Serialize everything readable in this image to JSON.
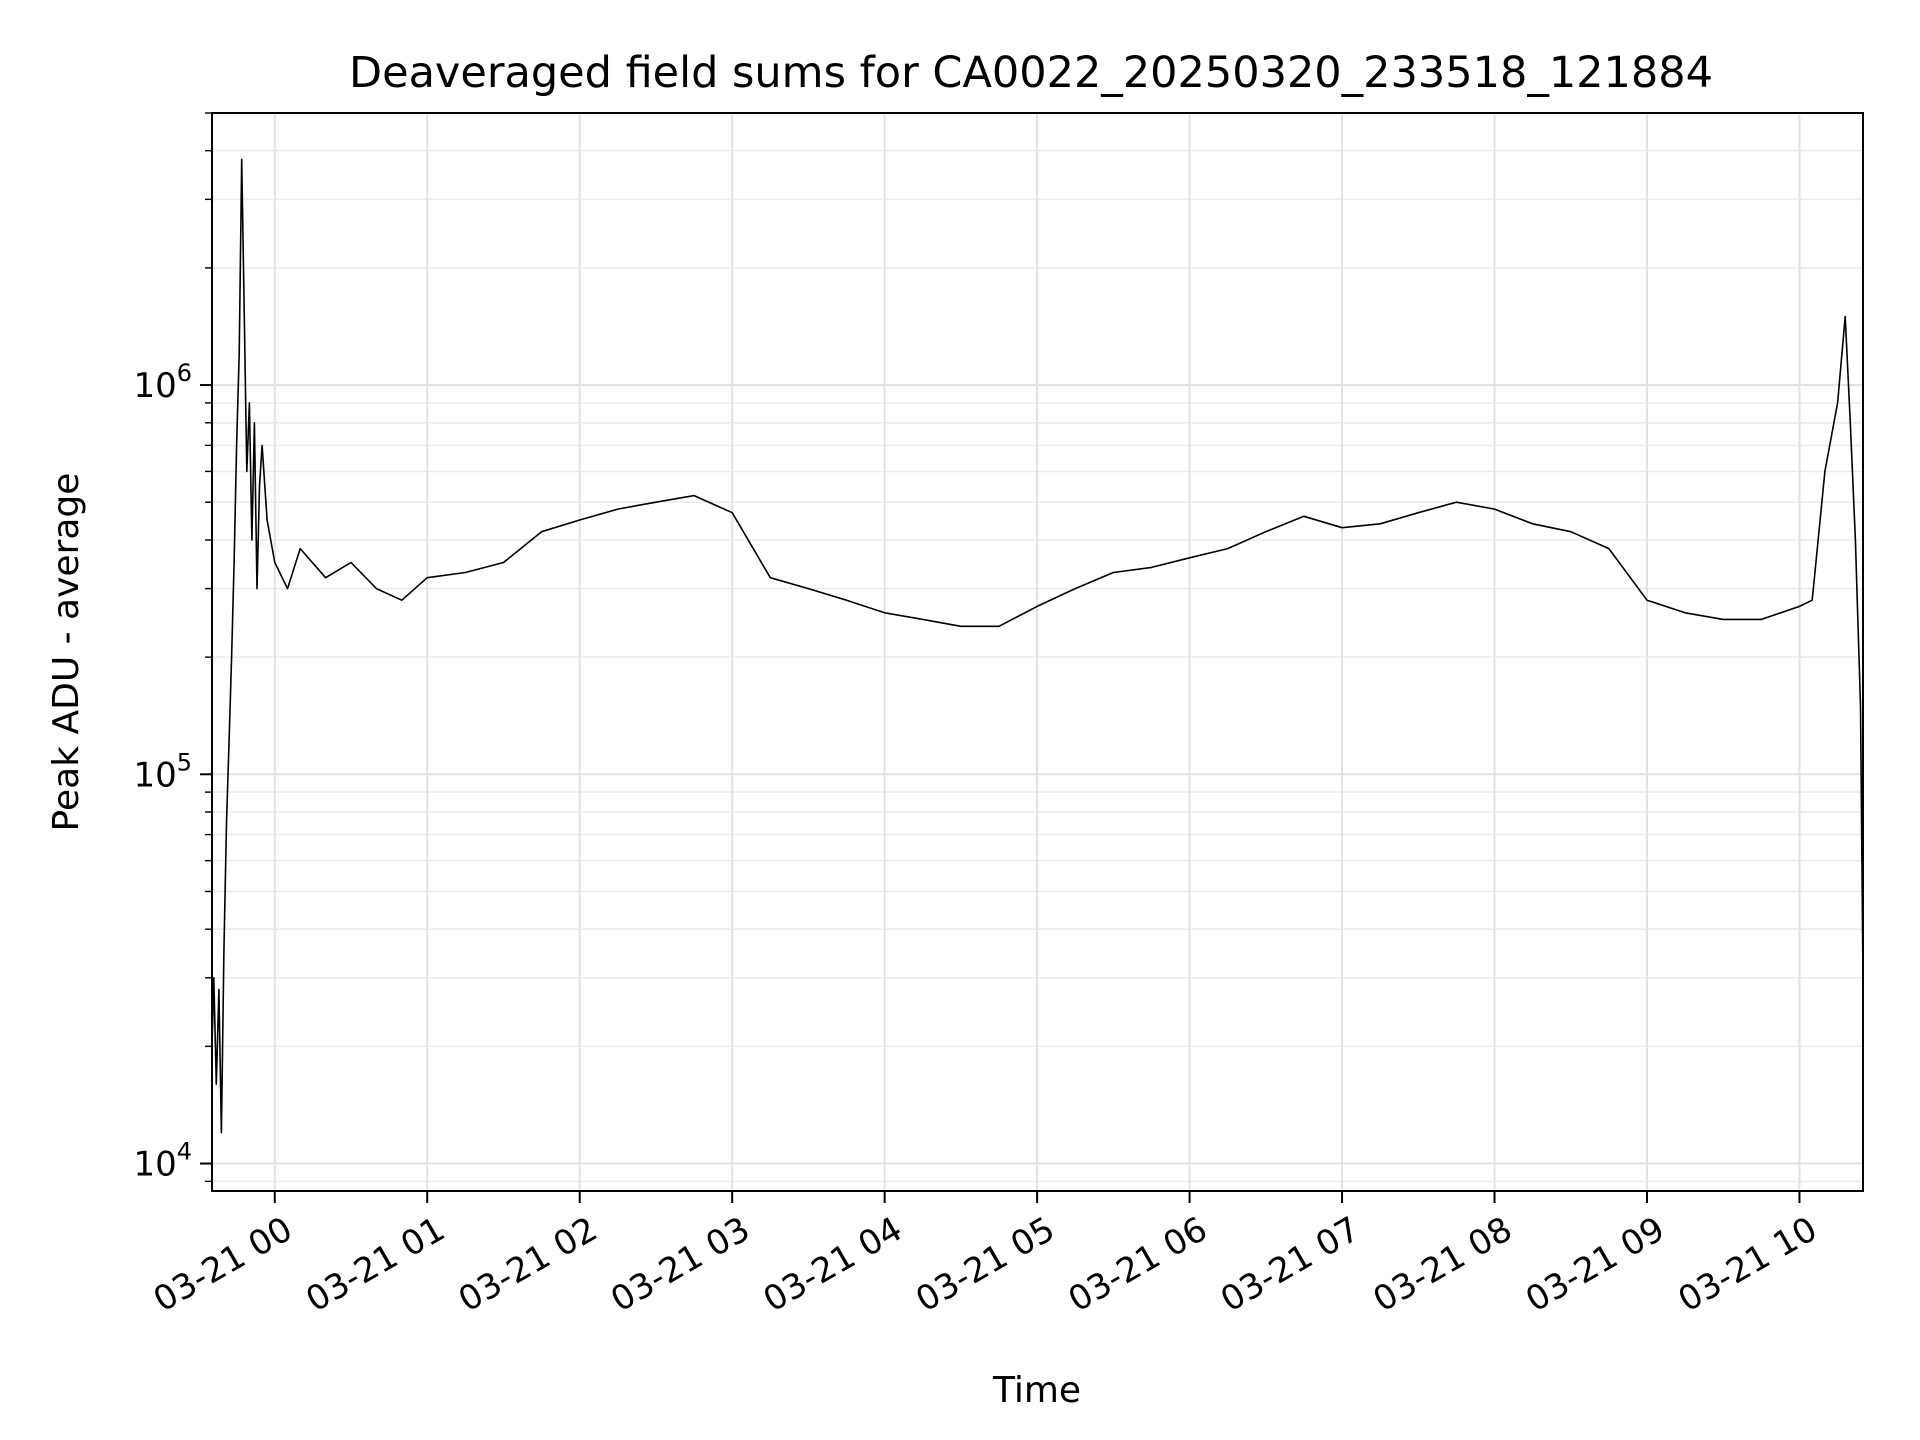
{
  "chart_data": {
    "type": "line",
    "title": "Deaveraged field sums for CA0022_20250320_233518_121884",
    "xlabel": "Time",
    "ylabel": "Peak ADU - average",
    "yscale": "log",
    "ylim": [
      8500,
      5000000
    ],
    "xlim": [
      "2025-03-20 23:35:18",
      "2025-03-21 10:25:00"
    ],
    "x_ticks": [
      {
        "t": "2025-03-21 00:00",
        "label": "03-21 00"
      },
      {
        "t": "2025-03-21 01:00",
        "label": "03-21 01"
      },
      {
        "t": "2025-03-21 02:00",
        "label": "03-21 02"
      },
      {
        "t": "2025-03-21 03:00",
        "label": "03-21 03"
      },
      {
        "t": "2025-03-21 04:00",
        "label": "03-21 04"
      },
      {
        "t": "2025-03-21 05:00",
        "label": "03-21 05"
      },
      {
        "t": "2025-03-21 06:00",
        "label": "03-21 06"
      },
      {
        "t": "2025-03-21 07:00",
        "label": "03-21 07"
      },
      {
        "t": "2025-03-21 08:00",
        "label": "03-21 08"
      },
      {
        "t": "2025-03-21 09:00",
        "label": "03-21 09"
      },
      {
        "t": "2025-03-21 10:00",
        "label": "03-21 10"
      }
    ],
    "y_ticks": [
      {
        "value": 10000,
        "base": "10",
        "exp": "4"
      },
      {
        "value": 100000,
        "base": "10",
        "exp": "5"
      },
      {
        "value": 1000000,
        "base": "10",
        "exp": "6"
      }
    ],
    "grid": true,
    "line_color": "#000000",
    "series": [
      {
        "x": [
          "2025-03-20 23:35:18",
          "2025-03-20 23:36:00",
          "2025-03-20 23:37:00",
          "2025-03-20 23:38:00",
          "2025-03-20 23:39:00",
          "2025-03-20 23:40:00",
          "2025-03-20 23:41:00",
          "2025-03-20 23:42:00",
          "2025-03-20 23:43:00",
          "2025-03-20 23:44:00",
          "2025-03-20 23:45:00",
          "2025-03-20 23:46:00",
          "2025-03-20 23:47:00",
          "2025-03-20 23:48:00",
          "2025-03-20 23:49:00",
          "2025-03-20 23:50:00",
          "2025-03-20 23:51:00",
          "2025-03-20 23:52:00",
          "2025-03-20 23:53:00",
          "2025-03-20 23:54:00",
          "2025-03-20 23:55:00",
          "2025-03-20 23:57:00",
          "2025-03-21 00:00:00",
          "2025-03-21 00:05:00",
          "2025-03-21 00:10:00",
          "2025-03-21 00:20:00",
          "2025-03-21 00:30:00",
          "2025-03-21 00:40:00",
          "2025-03-21 00:50:00",
          "2025-03-21 01:00:00",
          "2025-03-21 01:15:00",
          "2025-03-21 01:30:00",
          "2025-03-21 01:45:00",
          "2025-03-21 02:00:00",
          "2025-03-21 02:15:00",
          "2025-03-21 02:30:00",
          "2025-03-21 02:45:00",
          "2025-03-21 03:00:00",
          "2025-03-21 03:15:00",
          "2025-03-21 03:30:00",
          "2025-03-21 03:45:00",
          "2025-03-21 04:00:00",
          "2025-03-21 04:15:00",
          "2025-03-21 04:30:00",
          "2025-03-21 04:45:00",
          "2025-03-21 05:00:00",
          "2025-03-21 05:15:00",
          "2025-03-21 05:30:00",
          "2025-03-21 05:45:00",
          "2025-03-21 06:00:00",
          "2025-03-21 06:15:00",
          "2025-03-21 06:30:00",
          "2025-03-21 06:45:00",
          "2025-03-21 07:00:00",
          "2025-03-21 07:15:00",
          "2025-03-21 07:30:00",
          "2025-03-21 07:45:00",
          "2025-03-21 08:00:00",
          "2025-03-21 08:15:00",
          "2025-03-21 08:30:00",
          "2025-03-21 08:45:00",
          "2025-03-21 09:00:00",
          "2025-03-21 09:15:00",
          "2025-03-21 09:30:00",
          "2025-03-21 09:45:00",
          "2025-03-21 10:00:00",
          "2025-03-21 10:05:00",
          "2025-03-21 10:10:00",
          "2025-03-21 10:15:00",
          "2025-03-21 10:18:00",
          "2025-03-21 10:20:00",
          "2025-03-21 10:22:00",
          "2025-03-21 10:24:00",
          "2025-03-21 10:25:00"
        ],
        "y": [
          20000,
          30000,
          16000,
          28000,
          12000,
          35000,
          75000,
          120000,
          200000,
          350000,
          700000,
          1200000,
          3800000,
          1500000,
          600000,
          900000,
          400000,
          800000,
          300000,
          550000,
          700000,
          450000,
          350000,
          300000,
          380000,
          320000,
          350000,
          300000,
          280000,
          320000,
          330000,
          350000,
          420000,
          450000,
          480000,
          500000,
          520000,
          470000,
          320000,
          300000,
          280000,
          260000,
          250000,
          240000,
          240000,
          270000,
          300000,
          330000,
          340000,
          360000,
          380000,
          420000,
          460000,
          430000,
          440000,
          470000,
          500000,
          480000,
          440000,
          420000,
          380000,
          280000,
          260000,
          250000,
          250000,
          270000,
          280000,
          600000,
          900000,
          1500000,
          800000,
          400000,
          150000,
          30000
        ]
      }
    ]
  }
}
